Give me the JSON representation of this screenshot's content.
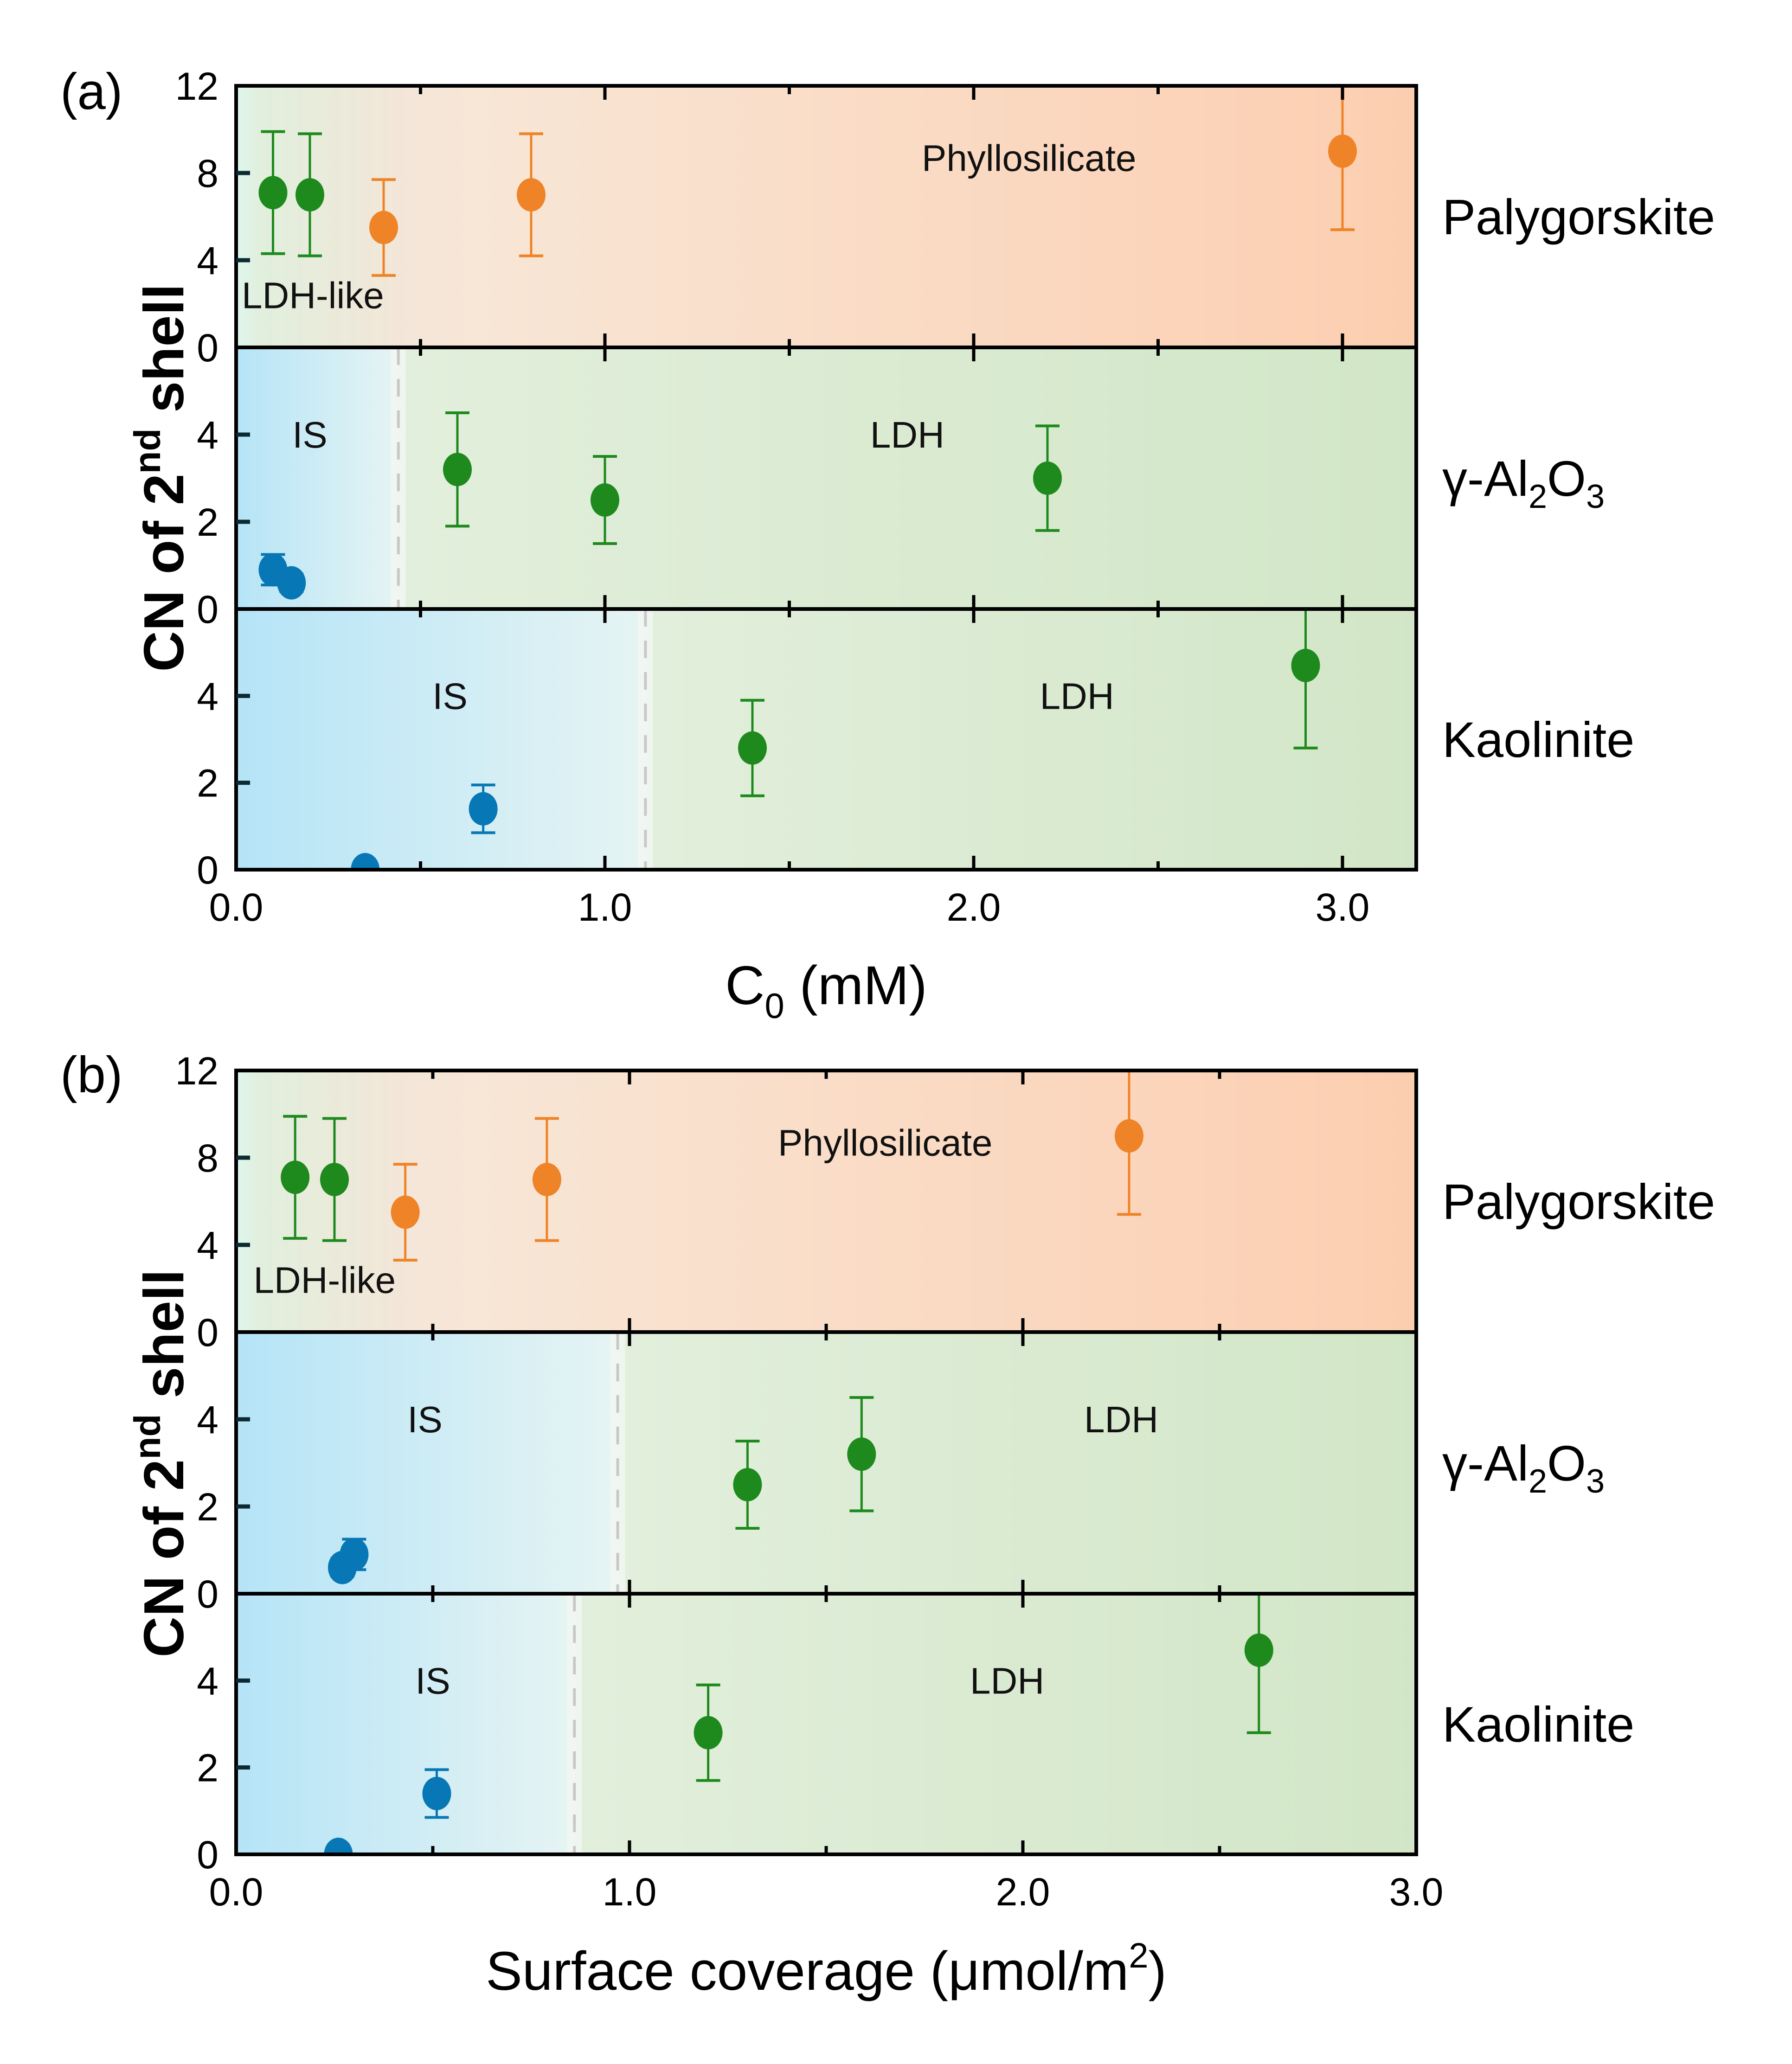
{
  "chart_data": [
    {
      "type": "scatter",
      "panel_label": "(a)",
      "xlabel": "C",
      "xlabel_sub": "0",
      "xlabel_tail": " (mM)",
      "ylabel": "CN of 2",
      "ylabel_sup": "nd",
      "ylabel_tail": " shell",
      "xlim": [
        0,
        3.2
      ],
      "xticks": [
        0.0,
        1.0,
        2.0,
        3.0
      ],
      "xtick_labels": [
        "0.0",
        "1.0",
        "2.0",
        "3.0"
      ],
      "subplots": [
        {
          "mineral": "Palygorskite",
          "ylim": [
            0,
            12
          ],
          "yticks": [
            0,
            4,
            8,
            12
          ],
          "ytick_labels": [
            "0",
            "4",
            "8",
            "12"
          ],
          "background": "phyllo",
          "regions": [
            {
              "label": "LDH-like",
              "x": 0.0,
              "y": 1.8
            },
            {
              "label": "Phyllosilicate",
              "x": 2.15,
              "y": 8.1
            }
          ],
          "divider": null,
          "points": [
            {
              "x": 0.1,
              "y": 7.1,
              "lo": 4.3,
              "hi": 9.9,
              "series": "LDH"
            },
            {
              "x": 0.2,
              "y": 7.0,
              "lo": 4.2,
              "hi": 9.8,
              "series": "LDH"
            },
            {
              "x": 0.4,
              "y": 5.5,
              "lo": 3.3,
              "hi": 7.7,
              "series": "Phyllosilicate"
            },
            {
              "x": 0.8,
              "y": 7.0,
              "lo": 4.2,
              "hi": 9.8,
              "series": "Phyllosilicate"
            },
            {
              "x": 3.0,
              "y": 9.0,
              "lo": 5.4,
              "hi": 12.6,
              "series": "Phyllosilicate"
            }
          ]
        },
        {
          "mineral": "γ-Al",
          "mineral_sub1": "2",
          "mineral_mid": "O",
          "mineral_sub2": "3",
          "ylim": [
            0,
            6
          ],
          "yticks": [
            0,
            2,
            4
          ],
          "ytick_labels": [
            "0",
            "2",
            "4"
          ],
          "background": "is-ldh",
          "divider": 0.44,
          "regions": [
            {
              "label": "IS",
              "x": 0.2,
              "y": 3.7
            },
            {
              "label": "LDH",
              "x": 1.82,
              "y": 3.7
            }
          ],
          "points": [
            {
              "x": 0.1,
              "y": 0.9,
              "lo": 0.55,
              "hi": 1.25,
              "series": "IS"
            },
            {
              "x": 0.15,
              "y": 0.6,
              "lo": 0.4,
              "hi": 0.8,
              "series": "IS"
            },
            {
              "x": 0.6,
              "y": 3.2,
              "lo": 1.9,
              "hi": 4.5,
              "series": "LDH"
            },
            {
              "x": 1.0,
              "y": 2.5,
              "lo": 1.5,
              "hi": 3.5,
              "series": "LDH"
            },
            {
              "x": 2.2,
              "y": 3.0,
              "lo": 1.8,
              "hi": 4.2,
              "series": "LDH"
            }
          ]
        },
        {
          "mineral": "Kaolinite",
          "ylim": [
            0,
            6
          ],
          "yticks": [
            0,
            2,
            4
          ],
          "ytick_labels": [
            "0",
            "2",
            "4"
          ],
          "background": "is-ldh",
          "divider": 1.11,
          "regions": [
            {
              "label": "IS",
              "x": 0.58,
              "y": 3.7
            },
            {
              "label": "LDH",
              "x": 2.28,
              "y": 3.7
            }
          ],
          "points": [
            {
              "x": 0.35,
              "y": 0.0,
              "lo": 0.0,
              "hi": 0.0,
              "series": "IS"
            },
            {
              "x": 0.67,
              "y": 1.4,
              "lo": 0.85,
              "hi": 1.95,
              "series": "IS"
            },
            {
              "x": 1.4,
              "y": 2.8,
              "lo": 1.7,
              "hi": 3.9,
              "series": "LDH"
            },
            {
              "x": 2.9,
              "y": 4.7,
              "lo": 2.8,
              "hi": 6.2,
              "series": "LDH"
            }
          ]
        }
      ]
    },
    {
      "type": "scatter",
      "panel_label": "(b)",
      "xlabel": "Surface coverage (μmol/m",
      "xlabel_sup": "2",
      "xlabel_tail": ")",
      "ylabel": "CN of 2",
      "ylabel_sup": "nd",
      "ylabel_tail": " shell",
      "xlim": [
        0,
        3.0
      ],
      "xticks": [
        0.0,
        1.0,
        2.0,
        3.0
      ],
      "xtick_labels": [
        "0.0",
        "1.0",
        "2.0",
        "3.0"
      ],
      "subplots": [
        {
          "mineral": "Palygorskite",
          "ylim": [
            0,
            12
          ],
          "yticks": [
            0,
            4,
            8,
            12
          ],
          "ytick_labels": [
            "0",
            "4",
            "8",
            "12"
          ],
          "background": "phyllo",
          "regions": [
            {
              "label": "LDH-like",
              "x": 0.03,
              "y": 1.8
            },
            {
              "label": "Phyllosilicate",
              "x": 1.65,
              "y": 8.1
            }
          ],
          "divider": null,
          "points": [
            {
              "x": 0.15,
              "y": 7.1,
              "lo": 4.3,
              "hi": 9.9,
              "series": "LDH"
            },
            {
              "x": 0.25,
              "y": 7.0,
              "lo": 4.2,
              "hi": 9.8,
              "series": "LDH"
            },
            {
              "x": 0.43,
              "y": 5.5,
              "lo": 3.3,
              "hi": 7.7,
              "series": "Phyllosilicate"
            },
            {
              "x": 0.79,
              "y": 7.0,
              "lo": 4.2,
              "hi": 9.8,
              "series": "Phyllosilicate"
            },
            {
              "x": 2.27,
              "y": 9.0,
              "lo": 5.4,
              "hi": 12.6,
              "series": "Phyllosilicate"
            }
          ]
        },
        {
          "mineral": "γ-Al",
          "mineral_sub1": "2",
          "mineral_mid": "O",
          "mineral_sub2": "3",
          "ylim": [
            0,
            6
          ],
          "yticks": [
            0,
            2,
            4
          ],
          "ytick_labels": [
            "0",
            "2",
            "4"
          ],
          "background": "is-ldh",
          "divider": 0.97,
          "regions": [
            {
              "label": "IS",
              "x": 0.48,
              "y": 3.7
            },
            {
              "label": "LDH",
              "x": 2.25,
              "y": 3.7
            }
          ],
          "points": [
            {
              "x": 0.27,
              "y": 0.6,
              "lo": 0.4,
              "hi": 0.8,
              "series": "IS"
            },
            {
              "x": 0.3,
              "y": 0.9,
              "lo": 0.55,
              "hi": 1.25,
              "series": "IS"
            },
            {
              "x": 1.3,
              "y": 2.5,
              "lo": 1.5,
              "hi": 3.5,
              "series": "LDH"
            },
            {
              "x": 1.59,
              "y": 3.2,
              "lo": 1.9,
              "hi": 4.5,
              "series": "LDH"
            }
          ]
        },
        {
          "mineral": "Kaolinite",
          "ylim": [
            0,
            6
          ],
          "yticks": [
            0,
            2,
            4
          ],
          "ytick_labels": [
            "0",
            "2",
            "4"
          ],
          "background": "is-ldh",
          "divider": 0.86,
          "regions": [
            {
              "label": "IS",
              "x": 0.5,
              "y": 3.7
            },
            {
              "label": "LDH",
              "x": 1.96,
              "y": 3.7
            }
          ],
          "points": [
            {
              "x": 0.26,
              "y": 0.0,
              "lo": 0.0,
              "hi": 0.0,
              "series": "IS"
            },
            {
              "x": 0.51,
              "y": 1.4,
              "lo": 0.85,
              "hi": 1.95,
              "series": "IS"
            },
            {
              "x": 1.2,
              "y": 2.8,
              "lo": 1.7,
              "hi": 3.9,
              "series": "LDH"
            },
            {
              "x": 2.6,
              "y": 4.7,
              "lo": 2.8,
              "hi": 6.2,
              "series": "LDH"
            }
          ]
        }
      ]
    }
  ],
  "colors": {
    "LDH": "#1e8a1e",
    "Phyllosilicate": "#ee8427",
    "IS": "#0877b5",
    "bg_is_start": "#b5e4f7",
    "bg_is_end": "#e6f4f3",
    "bg_ldh_start": "#e2efdc",
    "bg_ldh_end": "#d2e6c7",
    "bg_phyllo_start": "#dff6ee",
    "bg_phyllo_mid": "#f8e6d6",
    "bg_phyllo_end": "#fcceb0",
    "divider": "#c8c8c8",
    "divider_band": "#f1f6f1",
    "frame": "#000000"
  }
}
